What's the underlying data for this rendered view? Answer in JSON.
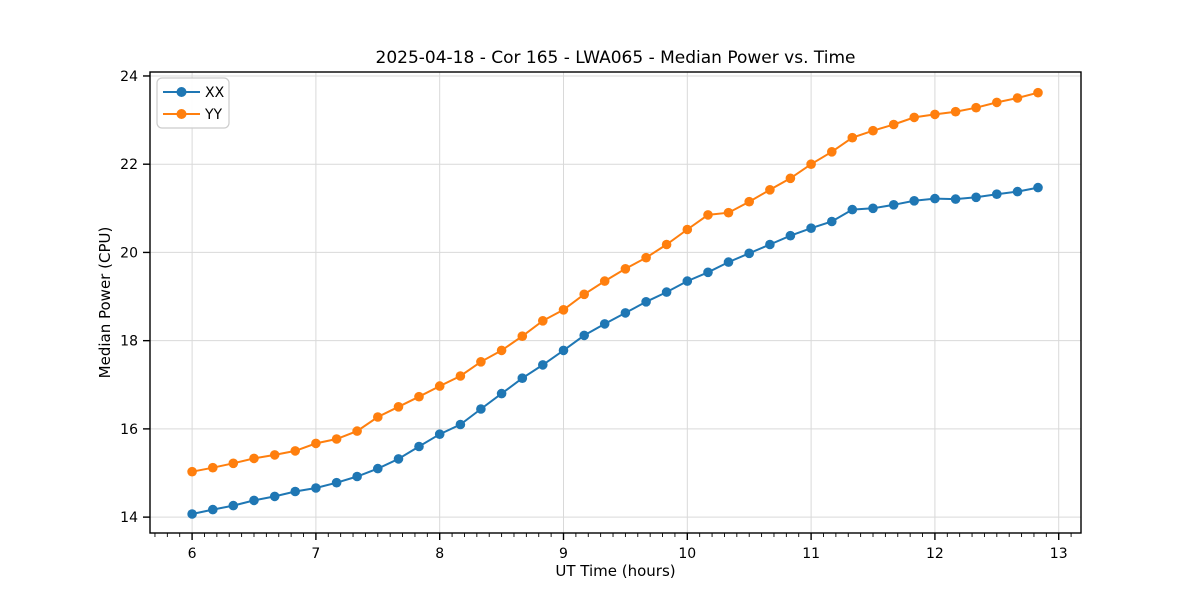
{
  "figure": {
    "background_color": "#ffffff",
    "grid_color": "#d9d9d9",
    "spine_color": "#000000",
    "text_color": "#000000"
  },
  "chart_data": {
    "type": "line",
    "title": "2025-04-18 - Cor 165 - LWA065 - Median Power vs. Time",
    "xlabel": "UT Time (hours)",
    "ylabel": "Median Power (CPU)",
    "xlim": [
      5.66,
      13.18
    ],
    "ylim": [
      13.64,
      24.09
    ],
    "x_ticks": [
      6,
      7,
      8,
      9,
      10,
      11,
      12,
      13
    ],
    "y_ticks": [
      14,
      16,
      18,
      20,
      22,
      24
    ],
    "x_minor_tick_step": 0.1,
    "grid": true,
    "legend_position": "upper-left",
    "marker": "circle",
    "x": [
      6.0,
      6.167,
      6.333,
      6.5,
      6.667,
      6.833,
      7.0,
      7.167,
      7.333,
      7.5,
      7.667,
      7.833,
      8.0,
      8.167,
      8.333,
      8.5,
      8.667,
      8.833,
      9.0,
      9.167,
      9.333,
      9.5,
      9.667,
      9.833,
      10.0,
      10.167,
      10.333,
      10.5,
      10.667,
      10.833,
      11.0,
      11.167,
      11.333,
      11.5,
      11.667,
      11.833,
      12.0,
      12.167,
      12.333,
      12.5,
      12.667,
      12.833
    ],
    "series": [
      {
        "name": "XX",
        "color": "#1f77b4",
        "values": [
          14.07,
          14.17,
          14.26,
          14.38,
          14.47,
          14.58,
          14.66,
          14.78,
          14.92,
          15.1,
          15.32,
          15.6,
          15.88,
          16.1,
          16.45,
          16.8,
          17.15,
          17.45,
          17.78,
          18.12,
          18.38,
          18.63,
          18.88,
          19.1,
          19.35,
          19.55,
          19.78,
          19.98,
          20.18,
          20.38,
          20.55,
          20.7,
          20.97,
          21.0,
          21.08,
          21.17,
          21.22,
          21.21,
          21.25,
          21.32,
          21.38,
          21.47
        ]
      },
      {
        "name": "YY",
        "color": "#ff7f0e",
        "values": [
          15.03,
          15.12,
          15.22,
          15.33,
          15.41,
          15.5,
          15.67,
          15.77,
          15.95,
          16.27,
          16.5,
          16.73,
          16.97,
          17.2,
          17.52,
          17.78,
          18.1,
          18.45,
          18.7,
          19.05,
          19.35,
          19.63,
          19.88,
          20.18,
          20.52,
          20.85,
          20.9,
          21.15,
          21.42,
          21.68,
          22.0,
          22.28,
          22.6,
          22.76,
          22.9,
          23.06,
          23.13,
          23.19,
          23.28,
          23.4,
          23.5,
          23.62
        ]
      }
    ]
  }
}
